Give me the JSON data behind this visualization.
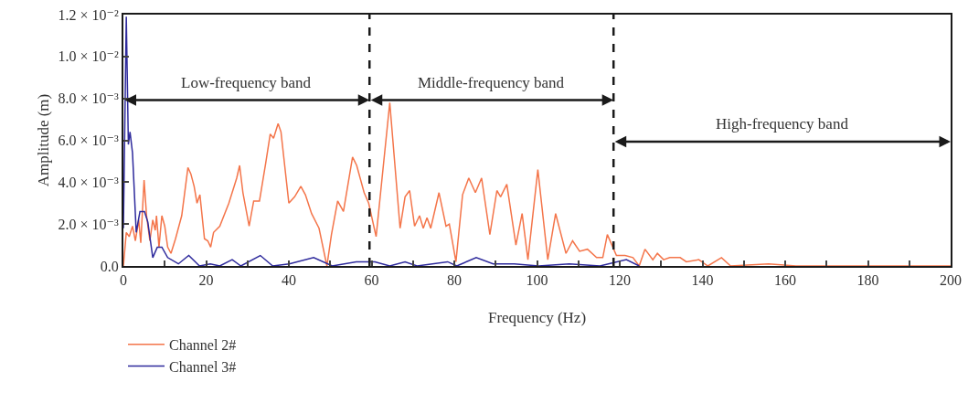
{
  "chart_data": {
    "type": "line",
    "xlabel": "Frequency (Hz)",
    "ylabel": "Amplitude (m)",
    "xlim": [
      0,
      200
    ],
    "xticks": [
      0,
      {
        "value": 10,
        "label": null
      },
      20,
      {
        "value": 30,
        "label": null
      },
      40,
      {
        "value": 50,
        "label": null
      },
      60,
      {
        "value": 70,
        "label": null
      },
      80,
      {
        "value": 90,
        "label": null
      },
      100,
      {
        "value": 110,
        "label": null
      },
      120,
      {
        "value": 130,
        "label": null
      },
      140,
      {
        "value": 150,
        "label": null
      },
      160,
      {
        "value": 170,
        "label": null
      },
      180,
      {
        "value": 190,
        "label": null
      },
      200
    ],
    "ylim": [
      0,
      0.012
    ],
    "yticks": [
      {
        "value": 0,
        "label": "0.0"
      },
      {
        "value": 0.002,
        "label": "2.0 × 10⁻³"
      },
      {
        "value": 0.004,
        "label": "4.0 × 10⁻³"
      },
      {
        "value": 0.006,
        "label": "6.0 × 10⁻³"
      },
      {
        "value": 0.008,
        "label": "8.0 × 10⁻³"
      },
      {
        "value": 0.01,
        "label": "1.0 × 10⁻²"
      },
      {
        "value": 0.012,
        "label": "1.2 × 10⁻²"
      }
    ],
    "grid": false,
    "legend": "bottom left",
    "marker": "none",
    "line_style": "solid",
    "series": [
      {
        "name": "Channel 2#",
        "color": "#f4754a",
        "x": [
          0,
          0.7,
          1.4,
          2.2,
          2.9,
          3.7,
          4.2,
          5.0,
          5.6,
          6.4,
          7.1,
          7.7,
          8.0,
          8.6,
          9.3,
          10.0,
          10.7,
          11.5,
          12.6,
          14.1,
          15.6,
          16.3,
          17.1,
          17.8,
          18.5,
          19.6,
          20.4,
          21.1,
          21.8,
          23.3,
          25.5,
          27.4,
          28.1,
          28.9,
          30.4,
          31.5,
          32.9,
          34.4,
          35.5,
          36.3,
          37.4,
          38.1,
          40.0,
          41.4,
          42.9,
          44.0,
          45.5,
          47.3,
          49.2,
          50.3,
          51.8,
          53.2,
          55.4,
          56.4,
          58.2,
          59.3,
          61.1,
          64.4,
          66.9,
          68.1,
          69.2,
          70.4,
          71.6,
          72.5,
          73.4,
          74.3,
          76.3,
          78.0,
          78.8,
          80.4,
          82.0,
          83.5,
          85.1,
          86.6,
          88.6,
          90.3,
          91.2,
          92.7,
          94.9,
          96.4,
          97.8,
          100.2,
          102.6,
          104.5,
          107.0,
          108.6,
          110.3,
          112.2,
          114.4,
          115.9,
          117.0,
          119.2,
          119.9,
          121.3,
          123.2,
          124.7,
          126.1,
          128.0,
          129.1,
          130.6,
          132.1,
          134.6,
          136.1,
          139.1,
          141.3,
          144.6,
          146.8,
          156.0,
          162.6,
          200
        ],
        "values": [
          0,
          0.0016,
          0.0014,
          0.0019,
          0.0012,
          0.0022,
          0.0011,
          0.0041,
          0.0024,
          0.0012,
          0.0022,
          0.0017,
          0.0024,
          0.0009,
          0.0024,
          0.0019,
          0.0009,
          0.0006,
          0.0013,
          0.0024,
          0.0047,
          0.0044,
          0.0038,
          0.003,
          0.0034,
          0.0013,
          0.0012,
          0.0009,
          0.0016,
          0.0019,
          0.003,
          0.0042,
          0.0048,
          0.0035,
          0.0019,
          0.0031,
          0.0031,
          0.0049,
          0.0063,
          0.0061,
          0.0068,
          0.0064,
          0.003,
          0.0033,
          0.0038,
          0.0034,
          0.0025,
          0.0018,
          0,
          0.0015,
          0.0031,
          0.0026,
          0.0052,
          0.0048,
          0.0035,
          0.003,
          0.0014,
          0.0078,
          0.0018,
          0.0033,
          0.0036,
          0.0019,
          0.0024,
          0.0018,
          0.0023,
          0.0018,
          0.0035,
          0.0019,
          0.002,
          0.0002,
          0.0034,
          0.0042,
          0.0035,
          0.0042,
          0.0015,
          0.0036,
          0.0033,
          0.0039,
          0.001,
          0.0025,
          0.0003,
          0.0046,
          0.0003,
          0.0025,
          0.0006,
          0.0012,
          0.0007,
          0.0008,
          0.0004,
          0.0004,
          0.0015,
          0.0005,
          0.0005,
          0.0005,
          0.0004,
          0,
          0.0008,
          0.0003,
          0.0006,
          0.0003,
          0.0004,
          0.0004,
          0.0002,
          0.0003,
          0,
          0.0004,
          0,
          0.0001,
          0,
          0
        ]
      },
      {
        "name": "Channel 3#",
        "color": "#2e2a9c",
        "x": [
          0,
          0.7,
          1.2,
          1.6,
          2.2,
          3.1,
          4.0,
          5.1,
          5.9,
          7.1,
          8.2,
          9.3,
          10.7,
          13.3,
          15.8,
          18.4,
          21.0,
          23.3,
          26.3,
          28.4,
          33.1,
          36.1,
          40.1,
          46.0,
          50.5,
          56.3,
          60.8,
          64.4,
          68.1,
          71.0,
          78.4,
          80.6,
          85.3,
          89.4,
          94.5,
          100.4,
          107.8,
          115.2,
          121.6,
          124.7
        ],
        "values": [
          0.0018,
          0.0119,
          0.0058,
          0.0064,
          0.0054,
          0.0016,
          0.0026,
          0.0026,
          0.0021,
          0.0004,
          0.0009,
          0.0009,
          0.0004,
          0.0001,
          0.0005,
          0,
          0.0001,
          0,
          0.0003,
          0,
          0.0005,
          0,
          0.0001,
          0.0004,
          0,
          0.0002,
          0.0002,
          0,
          0.0002,
          0,
          0.0002,
          0,
          0.0004,
          0.0001,
          0.0001,
          0,
          0.0001,
          0,
          0.0003,
          0
        ]
      }
    ],
    "ref_lines": [
      {
        "axis": "x",
        "value": 59.5,
        "color": "#1a1a1a",
        "line_style": "dashed"
      },
      {
        "axis": "x",
        "value": 118.5,
        "color": "#1a1a1a",
        "line_style": "dashed"
      }
    ],
    "annotations": [
      "Low-frequency band",
      "Middle-frequency band",
      "High-frequency band"
    ]
  }
}
